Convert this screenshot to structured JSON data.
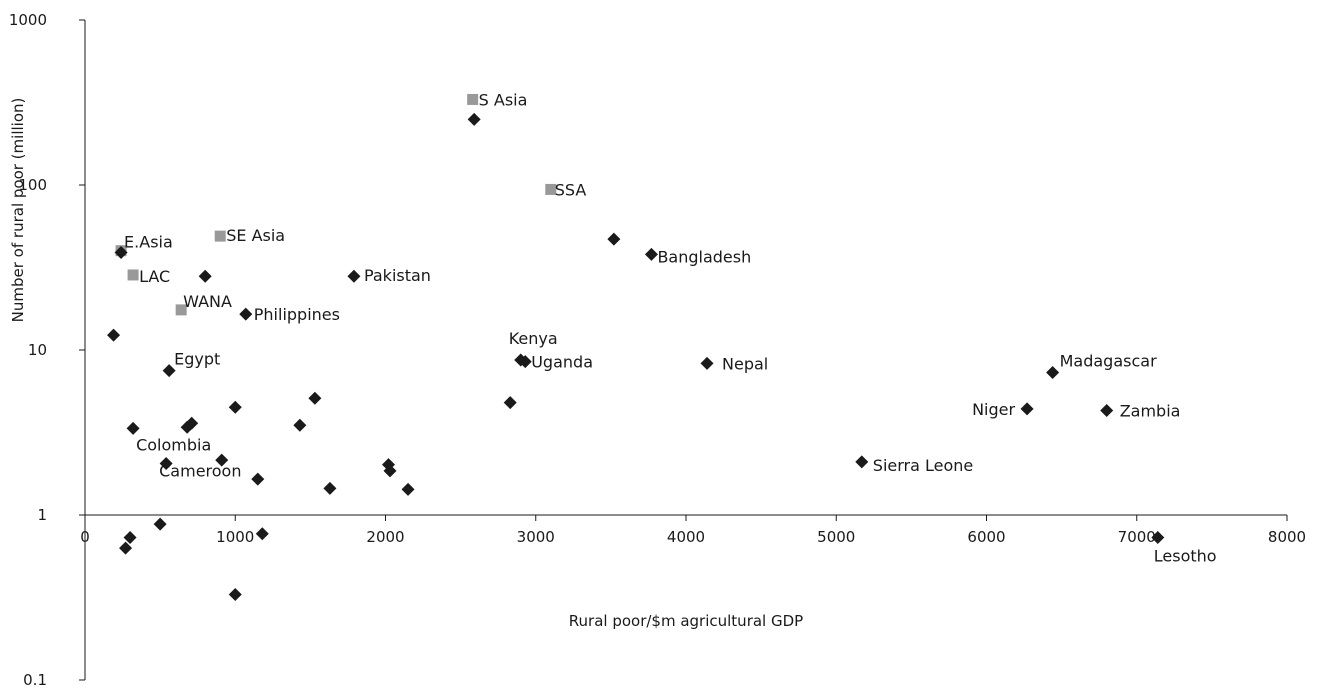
{
  "chart_data": {
    "type": "scatter",
    "title": "",
    "xlabel": "Rural poor/$m agricultural GDP",
    "ylabel": "Number of rural poor (million)",
    "xlim": [
      0,
      8000
    ],
    "ylim": [
      0.1,
      1000
    ],
    "y_scale": "log",
    "grid": false,
    "legend": "none",
    "x_ticks": [
      "0",
      "1000",
      "2000",
      "3000",
      "4000",
      "5000",
      "6000",
      "7000",
      "8000"
    ],
    "y_ticks": [
      "0.1",
      "1",
      "10",
      "100",
      "1000"
    ],
    "series": [
      {
        "marker": "square",
        "color": "#999999",
        "points": [
          {
            "x": 2580,
            "y": 330,
            "label": "S Asia"
          },
          {
            "x": 3100,
            "y": 94,
            "label": "SSA"
          },
          {
            "x": 900,
            "y": 49,
            "label": "SE Asia"
          },
          {
            "x": 240,
            "y": 40,
            "label": "E.Asia"
          },
          {
            "x": 320,
            "y": 28.5,
            "label": "LAC"
          },
          {
            "x": 640,
            "y": 17.5,
            "label": "WANA"
          }
        ]
      },
      {
        "marker": "diamond",
        "color": "#1a1a1a",
        "points": [
          {
            "x": 2590,
            "y": 250,
            "label": ""
          },
          {
            "x": 3520,
            "y": 47,
            "label": ""
          },
          {
            "x": 3770,
            "y": 38,
            "label": "Bangladesh"
          },
          {
            "x": 1790,
            "y": 28,
            "label": "Pakistan"
          },
          {
            "x": 800,
            "y": 28,
            "label": ""
          },
          {
            "x": 1070,
            "y": 16.5,
            "label": "Philippines"
          },
          {
            "x": 240,
            "y": 39,
            "label": ""
          },
          {
            "x": 190,
            "y": 12.3,
            "label": ""
          },
          {
            "x": 560,
            "y": 7.5,
            "label": "Egypt"
          },
          {
            "x": 2900,
            "y": 8.7,
            "label": "Kenya"
          },
          {
            "x": 2930,
            "y": 8.5,
            "label": "Uganda"
          },
          {
            "x": 4140,
            "y": 8.3,
            "label": "Nepal"
          },
          {
            "x": 6440,
            "y": 7.3,
            "label": "Madagascar"
          },
          {
            "x": 6270,
            "y": 4.4,
            "label": "Niger"
          },
          {
            "x": 6800,
            "y": 4.3,
            "label": "Zambia"
          },
          {
            "x": 2830,
            "y": 4.8,
            "label": ""
          },
          {
            "x": 1530,
            "y": 5.1,
            "label": ""
          },
          {
            "x": 1000,
            "y": 4.5,
            "label": ""
          },
          {
            "x": 1430,
            "y": 3.5,
            "label": ""
          },
          {
            "x": 680,
            "y": 3.4,
            "label": ""
          },
          {
            "x": 710,
            "y": 3.6,
            "label": ""
          },
          {
            "x": 320,
            "y": 3.35,
            "label": "Colombia"
          },
          {
            "x": 540,
            "y": 2.05,
            "label": "Cameroon"
          },
          {
            "x": 910,
            "y": 2.15,
            "label": ""
          },
          {
            "x": 1150,
            "y": 1.65,
            "label": ""
          },
          {
            "x": 2020,
            "y": 2.02,
            "label": ""
          },
          {
            "x": 2030,
            "y": 1.85,
            "label": ""
          },
          {
            "x": 1630,
            "y": 1.45,
            "label": ""
          },
          {
            "x": 2150,
            "y": 1.43,
            "label": ""
          },
          {
            "x": 5170,
            "y": 2.1,
            "label": "Sierra Leone"
          },
          {
            "x": 7140,
            "y": 0.73,
            "label": "Lesotho"
          },
          {
            "x": 500,
            "y": 0.88,
            "label": ""
          },
          {
            "x": 1180,
            "y": 0.77,
            "label": ""
          },
          {
            "x": 300,
            "y": 0.73,
            "label": ""
          },
          {
            "x": 270,
            "y": 0.63,
            "label": ""
          },
          {
            "x": 1000,
            "y": 0.33,
            "label": ""
          }
        ]
      }
    ]
  }
}
